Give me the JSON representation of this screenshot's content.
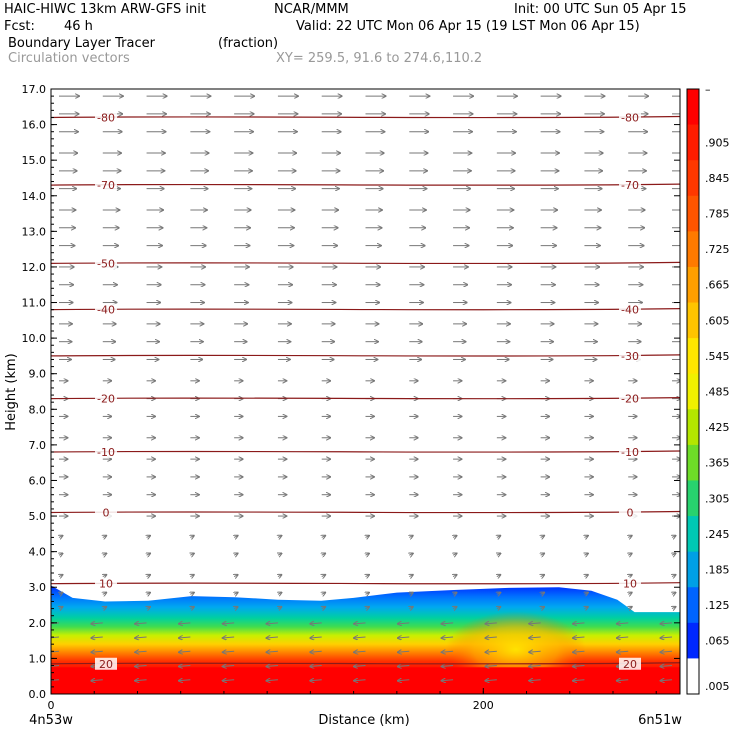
{
  "header": {
    "model": "HAIC-HIWC 13km ARW-GFS init",
    "org": "NCAR/MMM",
    "init": "Init: 00 UTC Sun 05 Apr 15",
    "fcst_label": "Fcst:",
    "fcst_value": "46 h",
    "valid": "Valid: 22 UTC Mon 06 Apr 15 (19 LST Mon 06 Apr 15)",
    "field": "Boundary Layer Tracer",
    "field_units": "(fraction)",
    "vectors": "Circulation vectors",
    "xy": "XY= 259.5, 91.6 to 274.6,110.2"
  },
  "chart_data": {
    "type": "heatmap",
    "xlabel": "Distance (km)",
    "ylabel": "Height (km)",
    "xlim": [
      0,
      291
    ],
    "ylim": [
      0,
      17
    ],
    "x_ticks": [
      0,
      200
    ],
    "x_tick_labels": [
      "0",
      "200"
    ],
    "x_endpoint_labels": [
      "4n53w",
      "6n51w"
    ],
    "y_ticks": [
      0,
      1,
      2,
      3,
      4,
      5,
      6,
      7,
      8,
      9,
      10,
      11,
      12,
      13,
      14,
      15,
      16,
      17
    ],
    "y_tick_labels": [
      "0.0",
      "1.0",
      "2.0",
      "3.0",
      "4.0",
      "5.0",
      "6.0",
      "7.0",
      "8.0",
      "9.0",
      "10.0",
      "11.0",
      "12.0",
      "13.0",
      "14.0",
      "15.0",
      "16.0",
      "17.0"
    ],
    "tracer_top_km": [
      [
        0,
        3.05
      ],
      [
        10,
        2.7
      ],
      [
        25,
        2.6
      ],
      [
        45,
        2.62
      ],
      [
        65,
        2.75
      ],
      [
        85,
        2.72
      ],
      [
        105,
        2.65
      ],
      [
        125,
        2.62
      ],
      [
        140,
        2.7
      ],
      [
        160,
        2.85
      ],
      [
        185,
        2.92
      ],
      [
        210,
        2.98
      ],
      [
        235,
        3.0
      ],
      [
        250,
        2.9
      ],
      [
        262,
        2.65
      ],
      [
        270,
        2.3
      ],
      [
        291,
        2.3
      ]
    ],
    "isotherms": [
      {
        "label": "-80",
        "height_km": 16.2,
        "label_pos": [
          "left",
          "right"
        ]
      },
      {
        "label": "-70",
        "height_km": 14.3,
        "label_pos": [
          "left",
          "right"
        ]
      },
      {
        "label": "-50",
        "height_km": 12.1,
        "label_pos": [
          "left"
        ]
      },
      {
        "label": "-40",
        "height_km": 10.8,
        "label_pos": [
          "left",
          "right"
        ]
      },
      {
        "label": "-30",
        "height_km": 9.5,
        "label_pos": [
          "right"
        ]
      },
      {
        "label": "-20",
        "height_km": 8.3,
        "label_pos": [
          "left",
          "right"
        ]
      },
      {
        "label": "-10",
        "height_km": 6.8,
        "label_pos": [
          "left",
          "right"
        ]
      },
      {
        "label": "0",
        "height_km": 5.1,
        "label_pos": [
          "left",
          "right"
        ]
      },
      {
        "label": "10",
        "height_km": 3.1,
        "label_pos": [
          "left",
          "right"
        ]
      },
      {
        "label": "20",
        "height_km": 0.85,
        "label_pos": [
          "left",
          "right"
        ]
      }
    ],
    "colorbar": {
      "labels": [
        "–",
        ".905",
        ".845",
        ".785",
        ".725",
        ".665",
        ".605",
        ".545",
        ".485",
        ".425",
        ".365",
        ".305",
        ".245",
        ".185",
        ".125",
        ".065",
        ".005"
      ],
      "colors": [
        "#ff0000",
        "#ff1c00",
        "#ff3800",
        "#ff5500",
        "#ff7a00",
        "#ff9f00",
        "#ffc400",
        "#ffe600",
        "#f0f000",
        "#b4e600",
        "#6edc28",
        "#28d26e",
        "#00c8b4",
        "#00a0e6",
        "#0064ff",
        "#0028ff",
        "#ffffff"
      ]
    },
    "vectors": {
      "description": "",
      "rows_km": [
        0.4,
        0.8,
        1.2,
        1.6,
        2.0,
        2.4,
        2.8,
        3.3,
        3.9,
        4.4,
        5.0,
        5.6,
        6.1,
        6.6,
        7.2,
        7.8,
        8.3,
        8.8,
        9.4,
        9.9,
        10.4,
        11.0,
        11.5,
        12.0,
        12.6,
        13.1,
        13.6,
        14.2,
        14.7,
        15.2,
        15.8,
        16.3,
        16.8
      ]
    }
  }
}
